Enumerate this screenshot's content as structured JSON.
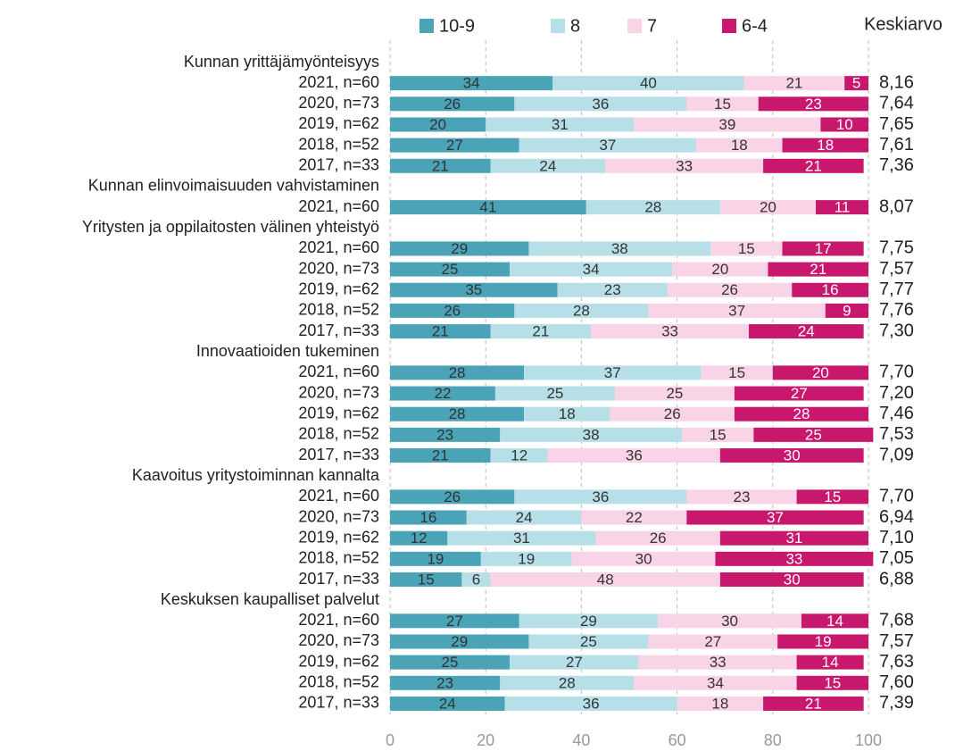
{
  "chart_data": {
    "type": "bar",
    "orientation": "horizontal",
    "stacked": true,
    "mean_header": "Keskiarvo",
    "xlim": [
      0,
      100
    ],
    "xticks": [
      0,
      20,
      40,
      60,
      80,
      100
    ],
    "grid": true,
    "legend": "top",
    "groups": [
      {
        "title": "Kunnan yrittäjämyönteisyys",
        "categories": [
          "2021, n=60",
          "2020, n=73",
          "2019, n=62",
          "2018, n=52",
          "2017, n=33"
        ]
      },
      {
        "title": "Kunnan elinvoimaisuuden vahvistaminen",
        "categories": [
          "2021, n=60"
        ]
      },
      {
        "title": "Yritysten ja oppilaitosten välinen yhteistyö",
        "categories": [
          "2021, n=60",
          "2020, n=73",
          "2019, n=62",
          "2018, n=52",
          "2017, n=33"
        ]
      },
      {
        "title": "Innovaatioiden tukeminen",
        "categories": [
          "2021, n=60",
          "2020, n=73",
          "2019, n=62",
          "2018, n=52",
          "2017, n=33"
        ]
      },
      {
        "title": "Kaavoitus yritystoiminnan kannalta",
        "categories": [
          "2021, n=60",
          "2020, n=73",
          "2019, n=62",
          "2018, n=52",
          "2017, n=33"
        ]
      },
      {
        "title": "Keskuksen kaupalliset palvelut",
        "categories": [
          "2021, n=60",
          "2020, n=73",
          "2019, n=62",
          "2018, n=52",
          "2017, n=33"
        ]
      }
    ],
    "series": [
      {
        "name": "10-9",
        "color": "#4ba3b8",
        "label_color": "#333333",
        "values": [
          34,
          26,
          20,
          27,
          21,
          41,
          29,
          25,
          35,
          26,
          21,
          28,
          22,
          28,
          23,
          21,
          26,
          16,
          12,
          19,
          15,
          27,
          29,
          25,
          23,
          24
        ]
      },
      {
        "name": "8",
        "color": "#b7dfe8",
        "label_color": "#333333",
        "values": [
          40,
          36,
          31,
          37,
          24,
          28,
          38,
          34,
          23,
          28,
          21,
          37,
          25,
          18,
          38,
          12,
          36,
          24,
          31,
          19,
          6,
          29,
          25,
          27,
          28,
          36
        ]
      },
      {
        "name": "7",
        "color": "#f9d3e6",
        "label_color": "#333333",
        "values": [
          21,
          15,
          39,
          18,
          33,
          20,
          15,
          20,
          26,
          37,
          33,
          15,
          25,
          26,
          15,
          36,
          23,
          22,
          26,
          30,
          48,
          30,
          27,
          33,
          34,
          18
        ]
      },
      {
        "name": "6-4",
        "color": "#c8186e",
        "label_color": "#ffffff",
        "values": [
          5,
          23,
          10,
          18,
          21,
          11,
          17,
          21,
          16,
          9,
          24,
          20,
          27,
          28,
          25,
          30,
          15,
          37,
          31,
          33,
          30,
          14,
          19,
          14,
          15,
          21
        ]
      }
    ],
    "means": [
      "8,16",
      "7,64",
      "7,65",
      "7,61",
      "7,36",
      "8,07",
      "7,75",
      "7,57",
      "7,77",
      "7,76",
      "7,30",
      "7,70",
      "7,20",
      "7,46",
      "7,53",
      "7,09",
      "7,70",
      "6,94",
      "7,10",
      "7,05",
      "6,88",
      "7,68",
      "7,57",
      "7,63",
      "7,60",
      "7,39"
    ]
  }
}
